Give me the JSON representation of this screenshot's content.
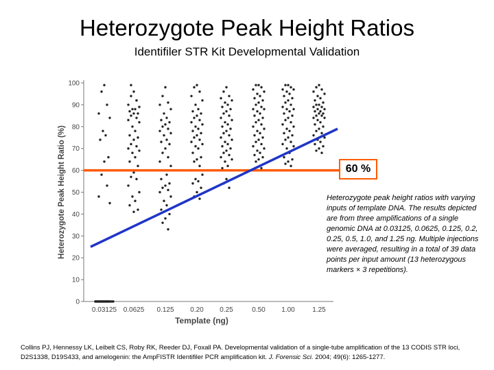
{
  "title": "Heterozygote Peak Height Ratios",
  "subtitle": "Identifiler STR Kit Developmental Validation",
  "callout": "60 %",
  "caption": "Heterozygote peak height ratios with varying inputs of template DNA. The results depicted are from three amplifications of a single genomic DNA at 0.03125, 0.0625, 0.125, 0.2, 0.25, 0.5, 1.0, and 1.25 ng. Multiple injections were averaged, resulting in a total of 39 data points per input amount (13 heterozygous markers × 3 repetitions).",
  "citation": {
    "authors": "Collins PJ, Hennessy LK, Leibelt CS, Roby RK, Reeder DJ, Foxall PA. Developmental validation of a single-tube amplification of the 13 CODIS STR loci, D2S1338, D19S433, and amelogenin: the AmpFISTR Identifiler PCR amplification kit.",
    "journal": "J. Forensic Sci.",
    "details": "2004; 49(6): 1265-1277."
  },
  "colors": {
    "threshold": "#ff5a00",
    "trend": "#1f35c8",
    "points": "#222222"
  },
  "chart_data": {
    "type": "scatter",
    "xlabel": "Template (ng)",
    "ylabel": "Heterozygote Peak Height Ratio (%)",
    "ylim": [
      0,
      100
    ],
    "yticks": [
      0,
      10,
      20,
      30,
      40,
      50,
      60,
      70,
      80,
      90,
      100
    ],
    "categories": [
      "0.03125",
      "0.0625",
      "0.125",
      "0.20",
      "0.25",
      "0.50",
      "1.00",
      "1.25"
    ],
    "points": [
      [
        0,
        99
      ],
      [
        0,
        96
      ],
      [
        0,
        90
      ],
      [
        0,
        86
      ],
      [
        0,
        84
      ],
      [
        0,
        78
      ],
      [
        0,
        76
      ],
      [
        0,
        74
      ],
      [
        0,
        66
      ],
      [
        0,
        64
      ],
      [
        0,
        58
      ],
      [
        0,
        53
      ],
      [
        0,
        48
      ],
      [
        0,
        45
      ],
      [
        0,
        0
      ],
      [
        0,
        0
      ],
      [
        0,
        0
      ],
      [
        0,
        0
      ],
      [
        0,
        0
      ],
      [
        0,
        0
      ],
      [
        0,
        0
      ],
      [
        0,
        0
      ],
      [
        0,
        0
      ],
      [
        0,
        0
      ],
      [
        0,
        0
      ],
      [
        0,
        0
      ],
      [
        0,
        0
      ],
      [
        0,
        0
      ],
      [
        0,
        0
      ],
      [
        0,
        0
      ],
      [
        0,
        0
      ],
      [
        0,
        0
      ],
      [
        0,
        0
      ],
      [
        0,
        0
      ],
      [
        0,
        0
      ],
      [
        0,
        0
      ],
      [
        0,
        0
      ],
      [
        0,
        0
      ],
      [
        0,
        0
      ],
      [
        1,
        96
      ],
      [
        1,
        94
      ],
      [
        1,
        92
      ],
      [
        1,
        90
      ],
      [
        1,
        89
      ],
      [
        1,
        88
      ],
      [
        1,
        88
      ],
      [
        1,
        87
      ],
      [
        1,
        86
      ],
      [
        1,
        86
      ],
      [
        1,
        85
      ],
      [
        1,
        84
      ],
      [
        1,
        83
      ],
      [
        1,
        82
      ],
      [
        1,
        80
      ],
      [
        1,
        78
      ],
      [
        1,
        76
      ],
      [
        1,
        75
      ],
      [
        1,
        74
      ],
      [
        1,
        72
      ],
      [
        1,
        71
      ],
      [
        1,
        70
      ],
      [
        1,
        69
      ],
      [
        1,
        68
      ],
      [
        1,
        66
      ],
      [
        1,
        64
      ],
      [
        1,
        62
      ],
      [
        1,
        59
      ],
      [
        1,
        57
      ],
      [
        1,
        56
      ],
      [
        1,
        53
      ],
      [
        1,
        50
      ],
      [
        1,
        48
      ],
      [
        1,
        46
      ],
      [
        1,
        44
      ],
      [
        1,
        42
      ],
      [
        1,
        41
      ],
      [
        1,
        99
      ],
      [
        1,
        92
      ],
      [
        2,
        98
      ],
      [
        2,
        94
      ],
      [
        2,
        91
      ],
      [
        2,
        90
      ],
      [
        2,
        88
      ],
      [
        2,
        86
      ],
      [
        2,
        84
      ],
      [
        2,
        83
      ],
      [
        2,
        82
      ],
      [
        2,
        81
      ],
      [
        2,
        80
      ],
      [
        2,
        79
      ],
      [
        2,
        78
      ],
      [
        2,
        77
      ],
      [
        2,
        76
      ],
      [
        2,
        74
      ],
      [
        2,
        73
      ],
      [
        2,
        72
      ],
      [
        2,
        70
      ],
      [
        2,
        68
      ],
      [
        2,
        66
      ],
      [
        2,
        64
      ],
      [
        2,
        62
      ],
      [
        2,
        60
      ],
      [
        2,
        58
      ],
      [
        2,
        56
      ],
      [
        2,
        54
      ],
      [
        2,
        53
      ],
      [
        2,
        52
      ],
      [
        2,
        51
      ],
      [
        2,
        50
      ],
      [
        2,
        48
      ],
      [
        2,
        46
      ],
      [
        2,
        44
      ],
      [
        2,
        42
      ],
      [
        2,
        40
      ],
      [
        2,
        38
      ],
      [
        2,
        36
      ],
      [
        2,
        33
      ],
      [
        3,
        99
      ],
      [
        3,
        98
      ],
      [
        3,
        96
      ],
      [
        3,
        94
      ],
      [
        3,
        92
      ],
      [
        3,
        90
      ],
      [
        3,
        88
      ],
      [
        3,
        87
      ],
      [
        3,
        86
      ],
      [
        3,
        85
      ],
      [
        3,
        84
      ],
      [
        3,
        83
      ],
      [
        3,
        82
      ],
      [
        3,
        81
      ],
      [
        3,
        80
      ],
      [
        3,
        79
      ],
      [
        3,
        78
      ],
      [
        3,
        77
      ],
      [
        3,
        76
      ],
      [
        3,
        75
      ],
      [
        3,
        74
      ],
      [
        3,
        73
      ],
      [
        3,
        72
      ],
      [
        3,
        71
      ],
      [
        3,
        70
      ],
      [
        3,
        68
      ],
      [
        3,
        66
      ],
      [
        3,
        65
      ],
      [
        3,
        64
      ],
      [
        3,
        62
      ],
      [
        3,
        60
      ],
      [
        3,
        58
      ],
      [
        3,
        56
      ],
      [
        3,
        55
      ],
      [
        3,
        54
      ],
      [
        3,
        52
      ],
      [
        3,
        50
      ],
      [
        3,
        48
      ],
      [
        3,
        47
      ],
      [
        4,
        98
      ],
      [
        4,
        96
      ],
      [
        4,
        94
      ],
      [
        4,
        93
      ],
      [
        4,
        92
      ],
      [
        4,
        91
      ],
      [
        4,
        90
      ],
      [
        4,
        89
      ],
      [
        4,
        88
      ],
      [
        4,
        87
      ],
      [
        4,
        86
      ],
      [
        4,
        85
      ],
      [
        4,
        84
      ],
      [
        4,
        83
      ],
      [
        4,
        82
      ],
      [
        4,
        81
      ],
      [
        4,
        80
      ],
      [
        4,
        79
      ],
      [
        4,
        78
      ],
      [
        4,
        77
      ],
      [
        4,
        76
      ],
      [
        4,
        75
      ],
      [
        4,
        74
      ],
      [
        4,
        73
      ],
      [
        4,
        72
      ],
      [
        4,
        71
      ],
      [
        4,
        70
      ],
      [
        4,
        69
      ],
      [
        4,
        68
      ],
      [
        4,
        67
      ],
      [
        4,
        66
      ],
      [
        4,
        65
      ],
      [
        4,
        64
      ],
      [
        4,
        62
      ],
      [
        4,
        61
      ],
      [
        4,
        60
      ],
      [
        4,
        56
      ],
      [
        4,
        54
      ],
      [
        4,
        52
      ],
      [
        5,
        99
      ],
      [
        5,
        99
      ],
      [
        5,
        98
      ],
      [
        5,
        97
      ],
      [
        5,
        96
      ],
      [
        5,
        95
      ],
      [
        5,
        94
      ],
      [
        5,
        93
      ],
      [
        5,
        92
      ],
      [
        5,
        91
      ],
      [
        5,
        90
      ],
      [
        5,
        89
      ],
      [
        5,
        88
      ],
      [
        5,
        88
      ],
      [
        5,
        87
      ],
      [
        5,
        86
      ],
      [
        5,
        85
      ],
      [
        5,
        84
      ],
      [
        5,
        83
      ],
      [
        5,
        82
      ],
      [
        5,
        81
      ],
      [
        5,
        80
      ],
      [
        5,
        79
      ],
      [
        5,
        78
      ],
      [
        5,
        77
      ],
      [
        5,
        76
      ],
      [
        5,
        75
      ],
      [
        5,
        74
      ],
      [
        5,
        73
      ],
      [
        5,
        72
      ],
      [
        5,
        71
      ],
      [
        5,
        70
      ],
      [
        5,
        69
      ],
      [
        5,
        68
      ],
      [
        5,
        67
      ],
      [
        5,
        66
      ],
      [
        5,
        65
      ],
      [
        5,
        64
      ],
      [
        5,
        61
      ],
      [
        6,
        99
      ],
      [
        6,
        99
      ],
      [
        6,
        98
      ],
      [
        6,
        97
      ],
      [
        6,
        97
      ],
      [
        6,
        96
      ],
      [
        6,
        95
      ],
      [
        6,
        94
      ],
      [
        6,
        93
      ],
      [
        6,
        92
      ],
      [
        6,
        91
      ],
      [
        6,
        90
      ],
      [
        6,
        89
      ],
      [
        6,
        88
      ],
      [
        6,
        88
      ],
      [
        6,
        87
      ],
      [
        6,
        86
      ],
      [
        6,
        85
      ],
      [
        6,
        84
      ],
      [
        6,
        83
      ],
      [
        6,
        82
      ],
      [
        6,
        81
      ],
      [
        6,
        80
      ],
      [
        6,
        79
      ],
      [
        6,
        78
      ],
      [
        6,
        77
      ],
      [
        6,
        76
      ],
      [
        6,
        75
      ],
      [
        6,
        74
      ],
      [
        6,
        73
      ],
      [
        6,
        72
      ],
      [
        6,
        71
      ],
      [
        6,
        70
      ],
      [
        6,
        68
      ],
      [
        6,
        66
      ],
      [
        6,
        65
      ],
      [
        6,
        64
      ],
      [
        6,
        63
      ],
      [
        6,
        62
      ],
      [
        7,
        99
      ],
      [
        7,
        98
      ],
      [
        7,
        97
      ],
      [
        7,
        96
      ],
      [
        7,
        95
      ],
      [
        7,
        94
      ],
      [
        7,
        93
      ],
      [
        7,
        92
      ],
      [
        7,
        91
      ],
      [
        7,
        90
      ],
      [
        7,
        90
      ],
      [
        7,
        89
      ],
      [
        7,
        89
      ],
      [
        7,
        88
      ],
      [
        7,
        88
      ],
      [
        7,
        87
      ],
      [
        7,
        87
      ],
      [
        7,
        86
      ],
      [
        7,
        86
      ],
      [
        7,
        85
      ],
      [
        7,
        85
      ],
      [
        7,
        84
      ],
      [
        7,
        84
      ],
      [
        7,
        83
      ],
      [
        7,
        82
      ],
      [
        7,
        81
      ],
      [
        7,
        80
      ],
      [
        7,
        79
      ],
      [
        7,
        78
      ],
      [
        7,
        77
      ],
      [
        7,
        76
      ],
      [
        7,
        75
      ],
      [
        7,
        74
      ],
      [
        7,
        73
      ],
      [
        7,
        72
      ],
      [
        7,
        71
      ],
      [
        7,
        70
      ],
      [
        7,
        69
      ],
      [
        7,
        68
      ]
    ],
    "threshold_line": {
      "y": 60,
      "label": "60 %"
    },
    "trend_line": {
      "x": [
        0,
        7.6
      ],
      "y": [
        25,
        79
      ]
    }
  }
}
